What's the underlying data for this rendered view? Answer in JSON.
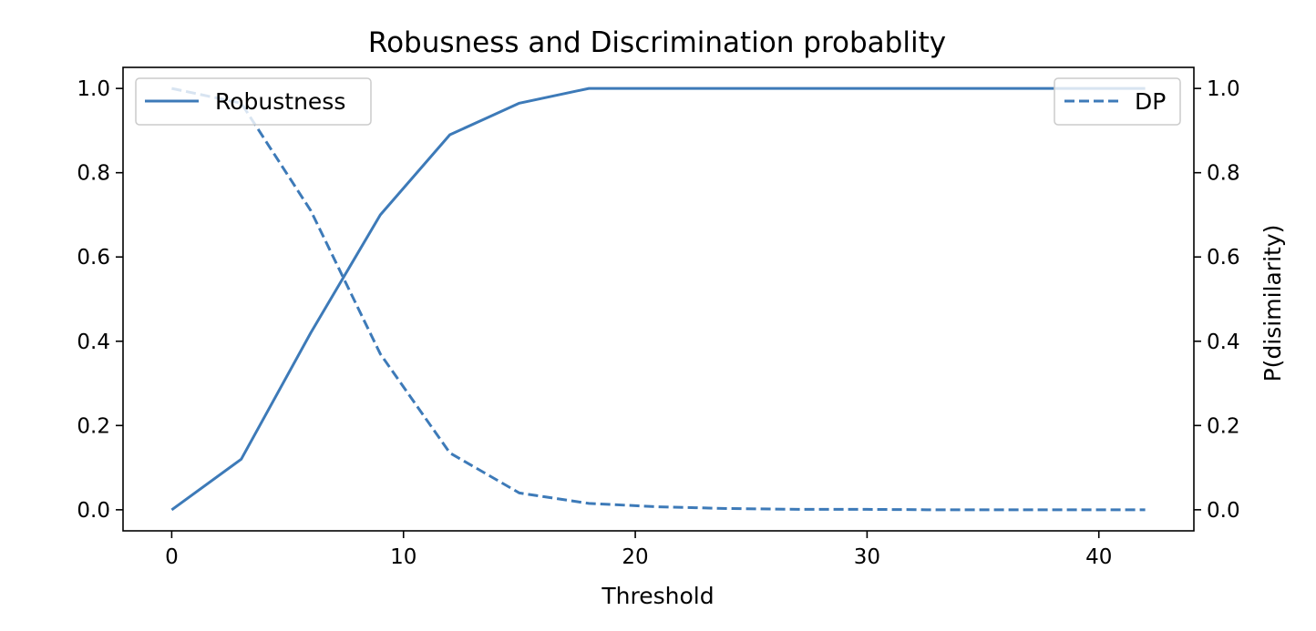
{
  "chart_data": {
    "type": "line",
    "title": "Robusness and Discrimination probablity",
    "xlabel": "Threshold",
    "ylabel_left": "",
    "ylabel_right": "P(disimilarity)",
    "xlim": [
      -2.1,
      44.1
    ],
    "ylim": [
      -0.05,
      1.05
    ],
    "x_ticks": [
      0,
      10,
      20,
      30,
      40
    ],
    "y_ticks": [
      0.0,
      0.2,
      0.4,
      0.6,
      0.8,
      1.0
    ],
    "x_tick_labels": [
      "0",
      "10",
      "20",
      "30",
      "40"
    ],
    "y_tick_labels": [
      "0.0",
      "0.2",
      "0.4",
      "0.6",
      "0.8",
      "1.0"
    ],
    "x": [
      0,
      3,
      6,
      9,
      12,
      15,
      18,
      21,
      24,
      27,
      30,
      33,
      36,
      39,
      42
    ],
    "series": [
      {
        "name": "Robustness",
        "axis": "left",
        "style": "solid",
        "color": "#3d7ab8",
        "values": [
          0.0,
          0.12,
          0.42,
          0.7,
          0.89,
          0.965,
          1.0,
          1.0,
          1.0,
          1.0,
          1.0,
          1.0,
          1.0,
          1.0,
          1.0
        ]
      },
      {
        "name": "DP",
        "axis": "right",
        "style": "dashed",
        "color": "#3d7ab8",
        "values": [
          1.0,
          0.965,
          0.71,
          0.37,
          0.135,
          0.04,
          0.015,
          0.007,
          0.003,
          0.001,
          0.001,
          0.0,
          0.0,
          0.0,
          0.0
        ]
      }
    ],
    "legend": [
      {
        "label": "Robustness",
        "placement": "top-left"
      },
      {
        "label": "DP",
        "placement": "top-right"
      }
    ],
    "grid": false
  }
}
